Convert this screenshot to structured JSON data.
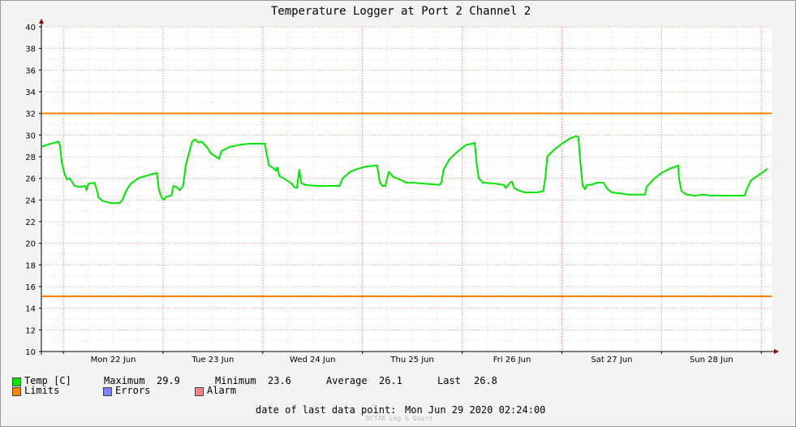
{
  "chart_data": {
    "type": "line",
    "title": "Temperature Logger at Port 2 Channel 2",
    "xlabel": "",
    "ylabel": "",
    "ylim": [
      10,
      40
    ],
    "ytick_step": 2,
    "x_unit": "hours since Mon 22 Jun 00:00",
    "xlim": [
      -5.3,
      170.5
    ],
    "x_day_labels": [
      "Mon 22 Jun",
      "Tue 23 Jun",
      "Wed 24 Jun",
      "Thu 25 Jun",
      "Fri 26 Jun",
      "Sat 27 Jun",
      "Sun 28 Jun"
    ],
    "limits": [
      32,
      15.1
    ],
    "series": [
      {
        "name": "Temp [C]",
        "color": "#00e600",
        "points": [
          [
            -5.3,
            28.9
          ],
          [
            -4,
            29.1
          ],
          [
            -2,
            29.3
          ],
          [
            -1.2,
            29.4
          ],
          [
            -0.8,
            29.0
          ],
          [
            -0.4,
            27.5
          ],
          [
            0.2,
            26.5
          ],
          [
            0.8,
            25.9
          ],
          [
            1.5,
            26.0
          ],
          [
            2.2,
            25.6
          ],
          [
            2.7,
            25.3
          ],
          [
            4,
            25.2
          ],
          [
            5.2,
            25.3
          ],
          [
            5.6,
            24.9
          ],
          [
            6,
            25.5
          ],
          [
            7.5,
            25.6
          ],
          [
            8,
            25.0
          ],
          [
            8.5,
            24.2
          ],
          [
            9.5,
            23.9
          ],
          [
            11.5,
            23.7
          ],
          [
            13.5,
            23.7
          ],
          [
            14.2,
            24.0
          ],
          [
            15.2,
            24.9
          ],
          [
            16.2,
            25.5
          ],
          [
            18,
            26.0
          ],
          [
            20.5,
            26.3
          ],
          [
            22.5,
            26.5
          ],
          [
            23,
            24.9
          ],
          [
            23.7,
            24.2
          ],
          [
            24.2,
            24.0
          ],
          [
            24.7,
            24.3
          ],
          [
            26,
            24.4
          ],
          [
            26.5,
            25.3
          ],
          [
            27.2,
            25.2
          ],
          [
            28,
            24.9
          ],
          [
            28.8,
            25.3
          ],
          [
            29.5,
            27.3
          ],
          [
            31,
            29.4
          ],
          [
            31.7,
            29.6
          ],
          [
            32.5,
            29.3
          ],
          [
            33.2,
            29.4
          ],
          [
            34.5,
            28.9
          ],
          [
            35.5,
            28.3
          ],
          [
            37.5,
            27.8
          ],
          [
            38,
            28.5
          ],
          [
            40,
            28.9
          ],
          [
            42.5,
            29.1
          ],
          [
            45,
            29.2
          ],
          [
            48.5,
            29.2
          ],
          [
            49,
            28.1
          ],
          [
            49.5,
            27.2
          ],
          [
            50.3,
            27.0
          ],
          [
            51.2,
            26.7
          ],
          [
            51.5,
            27.0
          ],
          [
            52,
            26.2
          ],
          [
            53,
            26.0
          ],
          [
            55,
            25.5
          ],
          [
            55.5,
            25.2
          ],
          [
            56.2,
            25.1
          ],
          [
            56.8,
            26.8
          ],
          [
            57.2,
            25.6
          ],
          [
            58,
            25.4
          ],
          [
            61,
            25.3
          ],
          [
            65,
            25.3
          ],
          [
            66.5,
            25.3
          ],
          [
            67.2,
            26.0
          ],
          [
            69,
            26.6
          ],
          [
            71,
            26.9
          ],
          [
            73,
            27.1
          ],
          [
            75.5,
            27.2
          ],
          [
            76.2,
            25.6
          ],
          [
            76.8,
            25.3
          ],
          [
            77.5,
            25.3
          ],
          [
            78.3,
            26.6
          ],
          [
            79.5,
            26.1
          ],
          [
            81,
            25.9
          ],
          [
            82.5,
            25.6
          ],
          [
            84,
            25.6
          ],
          [
            87,
            25.5
          ],
          [
            90.5,
            25.4
          ],
          [
            91,
            25.6
          ],
          [
            91.5,
            26.8
          ],
          [
            93,
            27.8
          ],
          [
            95,
            28.5
          ],
          [
            97,
            29.1
          ],
          [
            98.5,
            29.2
          ],
          [
            99,
            29.3
          ],
          [
            99.5,
            27.3
          ],
          [
            100,
            26.0
          ],
          [
            101,
            25.6
          ],
          [
            104,
            25.5
          ],
          [
            106,
            25.4
          ],
          [
            106.5,
            25.1
          ],
          [
            107.5,
            25.6
          ],
          [
            108,
            25.7
          ],
          [
            108.5,
            25.1
          ],
          [
            109.5,
            24.9
          ],
          [
            111,
            24.7
          ],
          [
            114,
            24.7
          ],
          [
            115.5,
            24.8
          ],
          [
            116,
            26.0
          ],
          [
            116.5,
            28.0
          ],
          [
            118,
            28.6
          ],
          [
            120,
            29.2
          ],
          [
            122,
            29.7
          ],
          [
            123.5,
            29.9
          ],
          [
            124,
            29.8
          ],
          [
            124.3,
            28.1
          ],
          [
            125,
            25.3
          ],
          [
            125.6,
            25.0
          ],
          [
            126,
            25.4
          ],
          [
            127,
            25.4
          ],
          [
            128.5,
            25.6
          ],
          [
            130,
            25.6
          ],
          [
            131,
            25.0
          ],
          [
            132,
            24.7
          ],
          [
            134,
            24.6
          ],
          [
            136,
            24.5
          ],
          [
            140,
            24.5
          ],
          [
            140.4,
            25.2
          ],
          [
            142,
            25.9
          ],
          [
            144,
            26.5
          ],
          [
            146,
            26.9
          ],
          [
            147.5,
            27.1
          ],
          [
            148,
            27.2
          ],
          [
            148.2,
            26.0
          ],
          [
            148.8,
            24.8
          ],
          [
            150,
            24.5
          ],
          [
            152,
            24.4
          ],
          [
            154,
            24.5
          ],
          [
            156,
            24.4
          ],
          [
            158,
            24.4
          ],
          [
            160,
            24.4
          ],
          [
            164,
            24.4
          ],
          [
            164.5,
            25.0
          ],
          [
            165.5,
            25.8
          ],
          [
            167,
            26.2
          ],
          [
            168.5,
            26.6
          ],
          [
            169.5,
            26.9
          ]
        ]
      }
    ]
  },
  "legend": {
    "temp": {
      "label": "Temp [C]",
      "color": "#00e600"
    },
    "limits": {
      "label": "Limits",
      "color": "#ff7f00"
    },
    "errors": {
      "label": "Errors",
      "color": "#7f7fff"
    },
    "alarm": {
      "label": "Alarm",
      "color": "#ff7f7f"
    }
  },
  "stats": {
    "max_label": "Maximum",
    "max_value": "29.9",
    "min_label": "Minimum",
    "min_value": "23.6",
    "avg_label": "Average",
    "avg_value": "26.1",
    "last_label": "Last",
    "last_value": "26.8"
  },
  "footer": {
    "date_label": "date of last data point:",
    "date_value": "Mon Jun 29 2020 02:24:00",
    "watermark": "OCTA8 Log & Guard"
  },
  "colors": {
    "background": "#f3f3f3",
    "plot_background": "#ffffff",
    "grid_major": "#e8a0a0",
    "grid_minor": "#f0d0d0",
    "axis_arrow": "#8b0000"
  }
}
